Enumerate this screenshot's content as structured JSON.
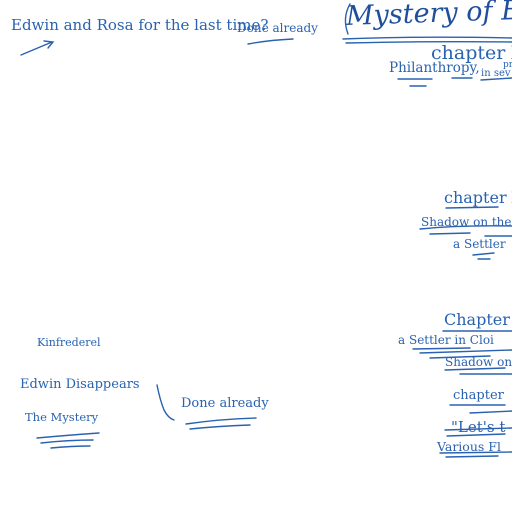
{
  "top_note": {
    "question": "Edwin and Rosa for the last time?",
    "done": "Done already"
  },
  "header_title": "Mystery of Edwin D",
  "chapter_1": {
    "heading": "chapter X",
    "line1_a": "Philanthropy,",
    "line1_b": "in sev",
    "line1_c": "pr"
  },
  "chapter_2": {
    "heading": "chapter X",
    "line1": "Shadow on the",
    "line2": "a Settler"
  },
  "chapter_3": {
    "heading": "Chapter",
    "line1": "a Settler in Cloi",
    "line2": "Shadow on"
  },
  "chapter_4": {
    "heading": "chapter",
    "line1": "\"Let's t",
    "line2": "Various Fl"
  },
  "left_notes": {
    "kinfrederel": "Kinfrederel",
    "edwin_disappears": "Edwin Disappears",
    "done": "Done already",
    "the_mystery": "The Mystery"
  },
  "colors": {
    "ink": "#2962b0",
    "background": "#ffffff"
  }
}
